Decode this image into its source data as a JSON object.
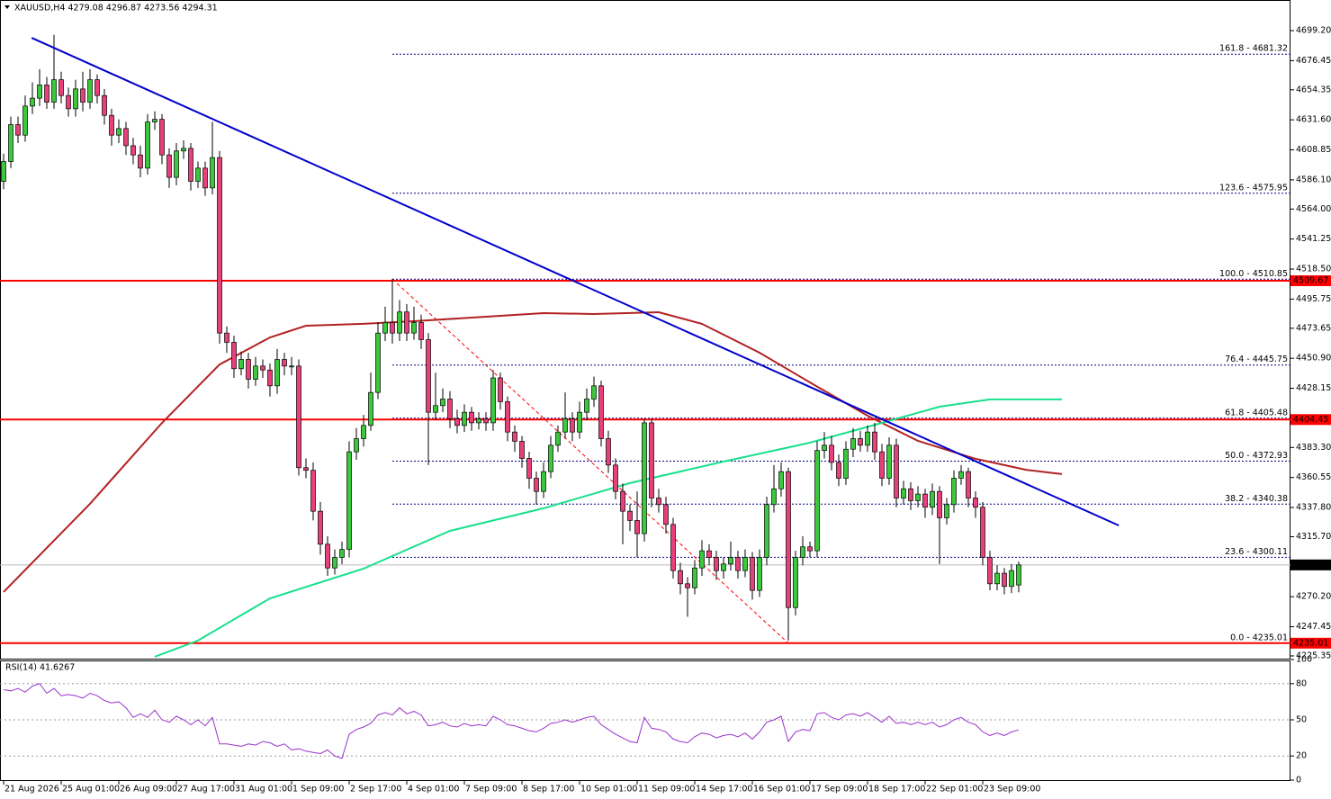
{
  "chart_data": {
    "type": "candlestick",
    "title": "XAUUSD,H4  4279.08 4296.87 4273.56 4294.31",
    "xlim": [
      -0.5,
      178.75
    ],
    "ylim": [
      4222.6,
      4722.4
    ],
    "yticks": [
      {
        "value": 4699.2,
        "label": "4699.20"
      },
      4676.45,
      4654.35,
      {
        "value": 4631.6,
        "label": "4631.60"
      },
      4608.85,
      {
        "value": 4586.1,
        "label": "4586.10"
      },
      {
        "value": 4564,
        "label": "4564.00"
      },
      4541.25,
      {
        "value": 4518.5,
        "label": "4518.50"
      },
      4495.75,
      4473.65,
      {
        "value": 4450.9,
        "label": "4450.90"
      },
      4428.15,
      {
        "value": 4383.3,
        "label": "4383.30"
      },
      4360.55,
      {
        "value": 4337.8,
        "label": "4337.80"
      },
      {
        "value": 4315.7,
        "label": "4315.70"
      },
      {
        "value": 4270.2,
        "label": "4270.20"
      },
      4247.45,
      4225.35
    ],
    "xticks": [
      {
        "value": 0,
        "label": "21 Aug 2026"
      },
      {
        "value": 8,
        "label": "25 Aug 01:00"
      },
      {
        "value": 16,
        "label": "26 Aug 09:00"
      },
      {
        "value": 24,
        "label": "27 Aug 17:00"
      },
      {
        "value": 32,
        "label": "31 Aug 01:00"
      },
      {
        "value": 40,
        "label": "1 Sep 09:00"
      },
      {
        "value": 48,
        "label": "2 Sep 17:00"
      },
      {
        "value": 56,
        "label": "4 Sep 01:00"
      },
      {
        "value": 64,
        "label": "7 Sep 09:00"
      },
      {
        "value": 72,
        "label": "8 Sep 17:00"
      },
      {
        "value": 80,
        "label": "10 Sep 01:00"
      },
      {
        "value": 88,
        "label": "11 Sep 09:00"
      },
      {
        "value": 96,
        "label": "14 Sep 17:00"
      },
      {
        "value": 104,
        "label": "16 Sep 01:00"
      },
      {
        "value": 112,
        "label": "17 Sep 09:00"
      },
      {
        "value": 120,
        "label": "18 Sep 17:00"
      },
      {
        "value": 128,
        "label": "22 Sep 01:00"
      },
      {
        "value": 136,
        "label": "23 Sep 09:00"
      }
    ],
    "grid": false,
    "up_color": "#3cc83c",
    "down_color": "#e8407a",
    "open": [
      4585,
      4600,
      4628,
      4620,
      4642,
      4648,
      4658,
      4645,
      4662,
      4650,
      4640,
      4655,
      4645,
      4662,
      4650,
      4635,
      4620,
      4625,
      4612,
      4605,
      4595,
      4630,
      4632,
      4605,
      4588,
      4608,
      4610,
      4585,
      4595,
      4580,
      4603,
      4470,
      4463,
      4443,
      4450,
      4435,
      4445,
      4442,
      4430,
      4450,
      4445,
      4445,
      4368,
      4366,
      4335,
      4310,
      4292,
      4300,
      4306,
      4380,
      4390,
      4400,
      4425,
      4470,
      4478,
      4470,
      4486,
      4470,
      4478,
      4465,
      4410,
      4415,
      4420,
      4405,
      4400,
      4410,
      4402,
      4405,
      4402,
      4436,
      4418,
      4395,
      4388,
      4375,
      4360,
      4350,
      4365,
      4385,
      4395,
      4405,
      4395,
      4410,
      4420,
      4430,
      4390,
      4370,
      4350,
      4335,
      4328,
      4318,
      4402,
      4345,
      4340,
      4325,
      4290,
      4280,
      4277,
      4292,
      4305,
      4300,
      4290,
      4295,
      4300,
      4290,
      4300,
      4275,
      4300,
      4340,
      4352,
      4365,
      4262,
      4300,
      4308,
      4305,
      4381,
      4385,
      4372,
      4360,
      4382,
      4390,
      4385,
      4395,
      4380,
      4360,
      4385,
      4345,
      4352,
      4343,
      4348,
      4338,
      4350,
      4330,
      4340,
      4360,
      4365,
      4345,
      4338,
      4300,
      4280,
      4288,
      4278,
      4279.08
    ],
    "high": [
      4606,
      4634,
      4634,
      4650,
      4660,
      4670,
      4664,
      4696,
      4668,
      4656,
      4662,
      4668,
      4670,
      4666,
      4655,
      4640,
      4632,
      4630,
      4618,
      4612,
      4636,
      4638,
      4636,
      4610,
      4614,
      4616,
      4614,
      4600,
      4600,
      4630,
      4608,
      4475,
      4468,
      4456,
      4455,
      4452,
      4450,
      4447,
      4458,
      4455,
      4452,
      4450,
      4375,
      4372,
      4342,
      4316,
      4306,
      4312,
      4388,
      4398,
      4408,
      4440,
      4478,
      4490,
      4511,
      4495,
      4492,
      4490,
      4484,
      4470,
      4440,
      4428,
      4426,
      4412,
      4416,
      4414,
      4410,
      4410,
      4442,
      4440,
      4422,
      4400,
      4392,
      4380,
      4365,
      4372,
      4392,
      4400,
      4425,
      4410,
      4418,
      4428,
      4437,
      4434,
      4396,
      4375,
      4356,
      4340,
      4350,
      4405,
      4405,
      4352,
      4346,
      4330,
      4296,
      4285,
      4298,
      4313,
      4310,
      4305,
      4300,
      4312,
      4305,
      4306,
      4304,
      4306,
      4346,
      4370,
      4372,
      4368,
      4305,
      4316,
      4312,
      4388,
      4395,
      4392,
      4378,
      4388,
      4398,
      4396,
      4400,
      4402,
      4386,
      4391,
      4390,
      4358,
      4357,
      4354,
      4352,
      4356,
      4354,
      4345,
      4366,
      4370,
      4368,
      4350,
      4342,
      4305,
      4294,
      4292,
      4295,
      4296.87
    ],
    "low": [
      4579,
      4595,
      4614,
      4615,
      4636,
      4642,
      4640,
      4640,
      4644,
      4634,
      4634,
      4638,
      4640,
      4644,
      4628,
      4612,
      4614,
      4605,
      4598,
      4588,
      4590,
      4624,
      4598,
      4580,
      4582,
      4602,
      4578,
      4580,
      4574,
      4575,
      4462,
      4455,
      4436,
      4438,
      4428,
      4430,
      4436,
      4422,
      4424,
      4438,
      4438,
      4362,
      4360,
      4328,
      4302,
      4286,
      4287,
      4295,
      4300,
      4374,
      4384,
      4396,
      4420,
      4464,
      4462,
      4464,
      4464,
      4465,
      4458,
      4370,
      4404,
      4410,
      4398,
      4394,
      4395,
      4396,
      4397,
      4396,
      4396,
      4412,
      4388,
      4380,
      4368,
      4352,
      4340,
      4345,
      4360,
      4380,
      4390,
      4388,
      4390,
      4404,
      4414,
      4384,
      4364,
      4344,
      4310,
      4320,
      4300,
      4312,
      4338,
      4334,
      4318,
      4284,
      4272,
      4255,
      4272,
      4286,
      4294,
      4283,
      4284,
      4290,
      4284,
      4285,
      4268,
      4270,
      4294,
      4334,
      4346,
      4237,
      4256,
      4294,
      4300,
      4300,
      4375,
      4366,
      4354,
      4355,
      4376,
      4380,
      4380,
      4374,
      4354,
      4355,
      4338,
      4340,
      4336,
      4338,
      4330,
      4332,
      4295,
      4325,
      4334,
      4355,
      4338,
      4330,
      4294,
      4275,
      4275,
      4272,
      4273,
      4273.56
    ],
    "close": [
      4600,
      4628,
      4620,
      4642,
      4648,
      4658,
      4645,
      4662,
      4650,
      4640,
      4655,
      4645,
      4662,
      4650,
      4635,
      4620,
      4625,
      4612,
      4605,
      4595,
      4630,
      4632,
      4605,
      4588,
      4608,
      4610,
      4585,
      4595,
      4580,
      4603,
      4470,
      4463,
      4443,
      4450,
      4435,
      4445,
      4442,
      4430,
      4450,
      4445,
      4445,
      4368,
      4366,
      4335,
      4310,
      4292,
      4300,
      4306,
      4380,
      4390,
      4400,
      4425,
      4470,
      4478,
      4470,
      4486,
      4470,
      4478,
      4465,
      4410,
      4415,
      4420,
      4405,
      4400,
      4410,
      4402,
      4405,
      4402,
      4436,
      4418,
      4395,
      4388,
      4375,
      4360,
      4350,
      4365,
      4385,
      4395,
      4405,
      4395,
      4410,
      4420,
      4430,
      4390,
      4370,
      4350,
      4335,
      4328,
      4318,
      4402,
      4345,
      4340,
      4325,
      4290,
      4280,
      4277,
      4292,
      4305,
      4300,
      4290,
      4295,
      4300,
      4290,
      4300,
      4275,
      4300,
      4340,
      4352,
      4365,
      4262,
      4300,
      4308,
      4305,
      4381,
      4385,
      4372,
      4360,
      4382,
      4390,
      4385,
      4395,
      4380,
      4360,
      4385,
      4345,
      4352,
      4343,
      4348,
      4338,
      4350,
      4330,
      4340,
      4360,
      4365,
      4345,
      4338,
      4300,
      4280,
      4288,
      4278,
      4290,
      4294.31
    ],
    "overlays": [
      {
        "color": "#b22222",
        "x": [
          0,
          12,
          22,
          30,
          37,
          42,
          50,
          57,
          67,
          75,
          82,
          91,
          97,
          105,
          112,
          120,
          127,
          135,
          142,
          147
        ],
        "values": [
          4273.8,
          4340.6,
          4401.9,
          4446.2,
          4466.7,
          4475.6,
          4477,
          4479,
          4482.4,
          4485.1,
          4484.4,
          4485.8,
          4477,
          4455.1,
          4432.6,
          4407.4,
          4388.3,
          4374.7,
          4366.4,
          4363.1
        ]
      },
      {
        "color": "#18e08c",
        "x": [
          21,
          27,
          37,
          50,
          62,
          75,
          87,
          100,
          112,
          122,
          130,
          137,
          147
        ],
        "values": [
          4224.7,
          4237,
          4269,
          4291.5,
          4320.1,
          4337.2,
          4356.3,
          4372.6,
          4386.9,
          4401.9,
          4414.2,
          4419.7,
          4419.7
        ]
      }
    ],
    "trendline": {
      "color": "#0000cd",
      "x": [
        3.9,
        154.9
      ],
      "values": [
        4693.7,
        4324.2
      ]
    },
    "fib": {
      "color": "#000080",
      "anchor_color": "#ff0000",
      "x": [
        54,
        109
      ],
      "values": [
        4510.85,
        4235.01
      ],
      "levels": [
        {
          "value": 4681.32,
          "label": "161.8 - 4681.32"
        },
        {
          "value": 4575.95,
          "label": "123.6 - 4575.95"
        },
        {
          "value": 4510.85,
          "label": "100.0 - 4510.85"
        },
        {
          "value": 4445.75,
          "label": "76.4 - 4445.75"
        },
        {
          "value": 4405.48,
          "label": "61.8 - 4405.48"
        },
        {
          "value": 4372.93,
          "label": "50.0 - 4372.93"
        },
        {
          "value": 4340.38,
          "label": "38.2 - 4340.38"
        },
        {
          "value": 4300.11,
          "label": "23.6 - 4300.11"
        },
        {
          "value": 4235.01,
          "label": "0.0 - 4235.01"
        }
      ]
    },
    "hlines": [
      {
        "value": 4509.67,
        "color": "#ff0000"
      },
      {
        "value": 4404.45,
        "color": "#ff0000"
      },
      {
        "value": 4235.01,
        "color": "#ff0000"
      }
    ],
    "current_price": 4294.31,
    "rsi": {
      "title": "RSI(14) 41.6267",
      "color": "#9932cc",
      "ylim": [
        0,
        100
      ],
      "yticks": [
        100,
        80,
        50,
        20,
        0
      ],
      "values": [
        75,
        74,
        76,
        73,
        78,
        80,
        72,
        76,
        70,
        71,
        70,
        68,
        72,
        70,
        66,
        64,
        65,
        60,
        52,
        55,
        52,
        58,
        50,
        48,
        53,
        50,
        46,
        50,
        45,
        52,
        30,
        30,
        29,
        28,
        30,
        29,
        32,
        31,
        28,
        30,
        25,
        26,
        24,
        23,
        22,
        25,
        20,
        18,
        38,
        42,
        44,
        47,
        54,
        56,
        54,
        60,
        55,
        57,
        54,
        45,
        46,
        48,
        45,
        44,
        47,
        45,
        46,
        45,
        53,
        50,
        46,
        45,
        43,
        41,
        40,
        43,
        47,
        48,
        50,
        48,
        50,
        52,
        53,
        46,
        42,
        38,
        35,
        32,
        31,
        52,
        43,
        42,
        40,
        34,
        32,
        31,
        36,
        39,
        38,
        35,
        37,
        38,
        36,
        39,
        34,
        40,
        48,
        50,
        53,
        32,
        40,
        42,
        41,
        55,
        56,
        52,
        50,
        54,
        55,
        53,
        56,
        52,
        48,
        53,
        47,
        48,
        46,
        48,
        46,
        48,
        44,
        46,
        50,
        52,
        48,
        46,
        40,
        37,
        39,
        37,
        40,
        41.6267
      ]
    }
  }
}
